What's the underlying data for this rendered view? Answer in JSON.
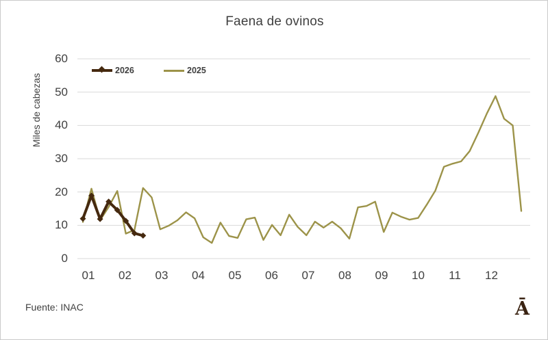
{
  "title": "Faena de ovinos",
  "y_axis": {
    "title": "Miles de cabezas",
    "ticks": [
      "60",
      "50",
      "40",
      "30",
      "20",
      "10",
      "0"
    ]
  },
  "x_axis": {
    "ticks": [
      "01",
      "02",
      "03",
      "04",
      "05",
      "06",
      "07",
      "08",
      "09",
      "10",
      "11",
      "12"
    ]
  },
  "legend": {
    "items": [
      {
        "label": "2026"
      },
      {
        "label": "2025"
      }
    ]
  },
  "footer": {
    "source": "Fuente: INAC",
    "logo": "Ā"
  },
  "colors": {
    "series_2026": "#45290f",
    "series_2025": "#9c9349",
    "gridline": "#d9d9d9",
    "text": "#404040",
    "logo": "#3a2312",
    "border": "#c9c9c9"
  },
  "chart_data": {
    "type": "line",
    "title": "Faena de ovinos",
    "xlabel": "",
    "ylabel": "Miles de cabezas",
    "ylim": [
      0,
      60
    ],
    "grid": true,
    "legend_position": "top-left",
    "x_unit": "weeks (weekly points spanning months 01-12)",
    "x_month_labels": [
      "01",
      "02",
      "03",
      "04",
      "05",
      "06",
      "07",
      "08",
      "09",
      "10",
      "11",
      "12"
    ],
    "series": [
      {
        "name": "2026",
        "color": "#45290f",
        "marker": "diamond",
        "line_width": 4,
        "values": [
          12,
          18.9,
          11.9,
          17.1,
          14.6,
          11.3,
          7.6,
          6.9
        ]
      },
      {
        "name": "2025",
        "color": "#9c9349",
        "marker": "none",
        "line_width": 2.4,
        "values": [
          11,
          21,
          11.5,
          15.5,
          20.3,
          7.5,
          8.6,
          21.2,
          18.4,
          8.8,
          9.9,
          11.5,
          13.9,
          12.1,
          6.4,
          4.7,
          10.8,
          6.8,
          6.2,
          11.8,
          12.3,
          5.6,
          10.1,
          7,
          13.2,
          9.5,
          7,
          11.1,
          9.3,
          11.1,
          9.1,
          6,
          15.4,
          15.8,
          17.1,
          8,
          13.8,
          12.6,
          11.7,
          12.2,
          16.2,
          20.4,
          27.6,
          28.5,
          29.2,
          32.3,
          37.8,
          43.6,
          48.8,
          42,
          40,
          14.3
        ]
      }
    ]
  }
}
